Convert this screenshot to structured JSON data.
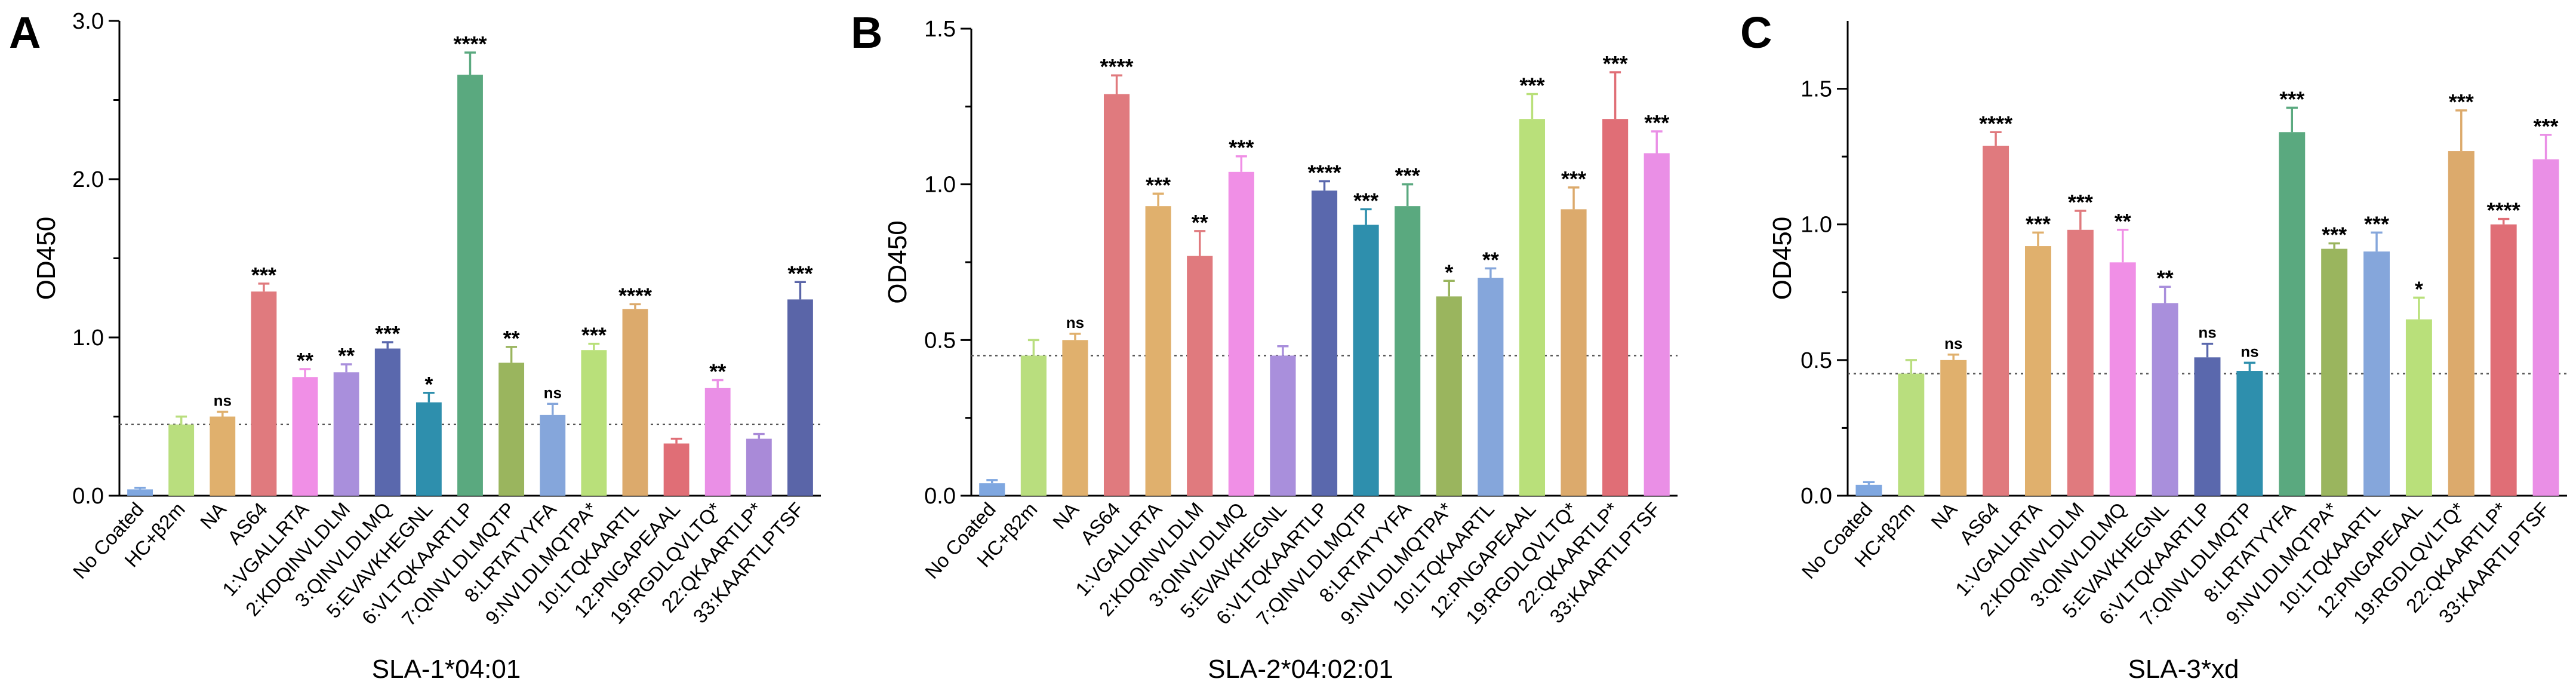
{
  "chart_data": [
    {
      "type": "bar",
      "panel_label": "A",
      "title": "",
      "xlabel": "SLA-1*04:01",
      "ylabel": "OD450",
      "ylim": [
        0,
        3.0
      ],
      "yticks": [
        "0.0",
        "1.0",
        "2.0",
        "3.0"
      ],
      "yticks_values": [
        0,
        1,
        2,
        3
      ],
      "threshold": 0.45,
      "categories": [
        "No Coated",
        "HC+β2m",
        "NA",
        "AS64",
        "1:VGALLRTA",
        "2:KDQINVLDLM",
        "3:QINVLDLMQ",
        "5:EVAVKHEGNL",
        "6:VLTQKAARTLP",
        "7:QINVLDLMQTP",
        "8:LRTATYYFA",
        "9:NVLDLMQTPA*",
        "10:LTQKAARTL",
        "12:PNGAPEAAL",
        "19:RGDLQVLTQ*",
        "22:QKAARTLP*",
        "33:KAARTLPTSF"
      ],
      "values": [
        0.04,
        0.45,
        0.5,
        1.29,
        0.75,
        0.78,
        0.93,
        0.59,
        2.66,
        0.84,
        0.51,
        0.92,
        1.18,
        0.33,
        0.68,
        0.36,
        1.24
      ],
      "errors": [
        0.01,
        0.05,
        0.03,
        0.05,
        0.05,
        0.05,
        0.04,
        0.06,
        0.14,
        0.1,
        0.07,
        0.04,
        0.03,
        0.03,
        0.05,
        0.03,
        0.11
      ],
      "significance": [
        "",
        "",
        "ns",
        "***",
        "**",
        "**",
        "***",
        "*",
        "****",
        "**",
        "ns",
        "***",
        "****",
        "",
        "**",
        "",
        "***"
      ],
      "colors": [
        "#7fa7e0",
        "#b9de7e",
        "#e0b06d",
        "#e07a7e",
        "#f08fe6",
        "#a98fdc",
        "#5a68ad",
        "#2e8fad",
        "#5aa97f",
        "#9ab55e",
        "#85a6db",
        "#b9e07a",
        "#dcaa6c",
        "#e06e76",
        "#ea8fe6",
        "#a98ad8",
        "#5a65a8"
      ]
    },
    {
      "type": "bar",
      "panel_label": "B",
      "title": "",
      "xlabel": "SLA-2*04:02:01",
      "ylabel": "OD450",
      "ylim": [
        0,
        1.5
      ],
      "yticks": [
        "0.0",
        "0.5",
        "1.0",
        "1.5"
      ],
      "yticks_values": [
        0,
        0.5,
        1.0,
        1.5
      ],
      "threshold": 0.45,
      "categories": [
        "No Coated",
        "HC+β2m",
        "NA",
        "AS64",
        "1:VGALLRTA",
        "2:KDQINVLDLM",
        "3:QINVLDLMQ",
        "5:EVAVKHEGNL",
        "6:VLTQKAARTLP",
        "7:QINVLDLMQTP",
        "8:LRTATYYFA",
        "9:NVLDLMQTPA*",
        "10:LTQKAARTL",
        "12:PNGAPEAAL",
        "19:RGDLQVLTQ*",
        "22:QKAARTLP*",
        "33:KAARTLPTSF"
      ],
      "values": [
        0.04,
        0.45,
        0.5,
        1.29,
        0.93,
        0.77,
        1.04,
        0.45,
        0.98,
        0.87,
        0.93,
        0.64,
        0.7,
        1.21,
        0.92,
        1.21,
        1.1
      ],
      "errors": [
        0.01,
        0.05,
        0.02,
        0.06,
        0.04,
        0.08,
        0.05,
        0.03,
        0.03,
        0.05,
        0.07,
        0.05,
        0.03,
        0.08,
        0.07,
        0.15,
        0.07
      ],
      "significance": [
        "",
        "",
        "ns",
        "****",
        "***",
        "**",
        "***",
        "",
        "****",
        "***",
        "***",
        "*",
        "**",
        "***",
        "***",
        "***",
        "***"
      ],
      "colors": [
        "#7fa7e0",
        "#b9de7e",
        "#e0b06d",
        "#e07a7e",
        "#e0b06d",
        "#e07a7e",
        "#f08fe6",
        "#a98fdc",
        "#5a68ad",
        "#2e8fad",
        "#5aa97f",
        "#9ab55e",
        "#85a6db",
        "#b9e07a",
        "#dcaa6c",
        "#e06e76",
        "#ea8fe6"
      ]
    },
    {
      "type": "bar",
      "panel_label": "C",
      "title": "",
      "xlabel": "SLA-3*xd",
      "ylabel": "OD450",
      "ylim": [
        0,
        1.75
      ],
      "yticks": [
        "0.0",
        "0.5",
        "1.0",
        "1.5"
      ],
      "yticks_values": [
        0,
        0.5,
        1.0,
        1.5
      ],
      "threshold": 0.45,
      "categories": [
        "No Coated",
        "HC+β2m",
        "NA",
        "AS64",
        "1:VGALLRTA",
        "2:KDQINVLDLM",
        "3:QINVLDLMQ",
        "5:EVAVKHEGNL",
        "6:VLTQKAARTLP",
        "7:QINVLDLMQTP",
        "8:LRTATYYFA",
        "9:NVLDLMQTPA*",
        "10:LTQKAARTL",
        "12:PNGAPEAAL",
        "19:RGDLQVLTQ*",
        "22:QKAARTLP*",
        "33:KAARTLPTSF"
      ],
      "values": [
        0.04,
        0.45,
        0.5,
        1.29,
        0.92,
        0.98,
        0.86,
        0.71,
        0.51,
        0.46,
        1.34,
        0.91,
        0.9,
        0.65,
        1.27,
        1.0,
        1.24
      ],
      "errors": [
        0.01,
        0.05,
        0.02,
        0.05,
        0.05,
        0.07,
        0.12,
        0.06,
        0.05,
        0.03,
        0.09,
        0.02,
        0.07,
        0.08,
        0.15,
        0.02,
        0.09
      ],
      "significance": [
        "",
        "",
        "ns",
        "****",
        "***",
        "***",
        "**",
        "**",
        "ns",
        "ns",
        "***",
        "***",
        "***",
        "*",
        "***",
        "****",
        "***"
      ],
      "colors": [
        "#7fa7e0",
        "#b9de7e",
        "#e0b06d",
        "#e07a7e",
        "#e0b06d",
        "#e07a7e",
        "#f08fe6",
        "#a98fdc",
        "#5a68ad",
        "#2e8fad",
        "#5aa97f",
        "#9ab55e",
        "#85a6db",
        "#b9e07a",
        "#dcaa6c",
        "#e06e76",
        "#ea8fe6"
      ]
    }
  ]
}
